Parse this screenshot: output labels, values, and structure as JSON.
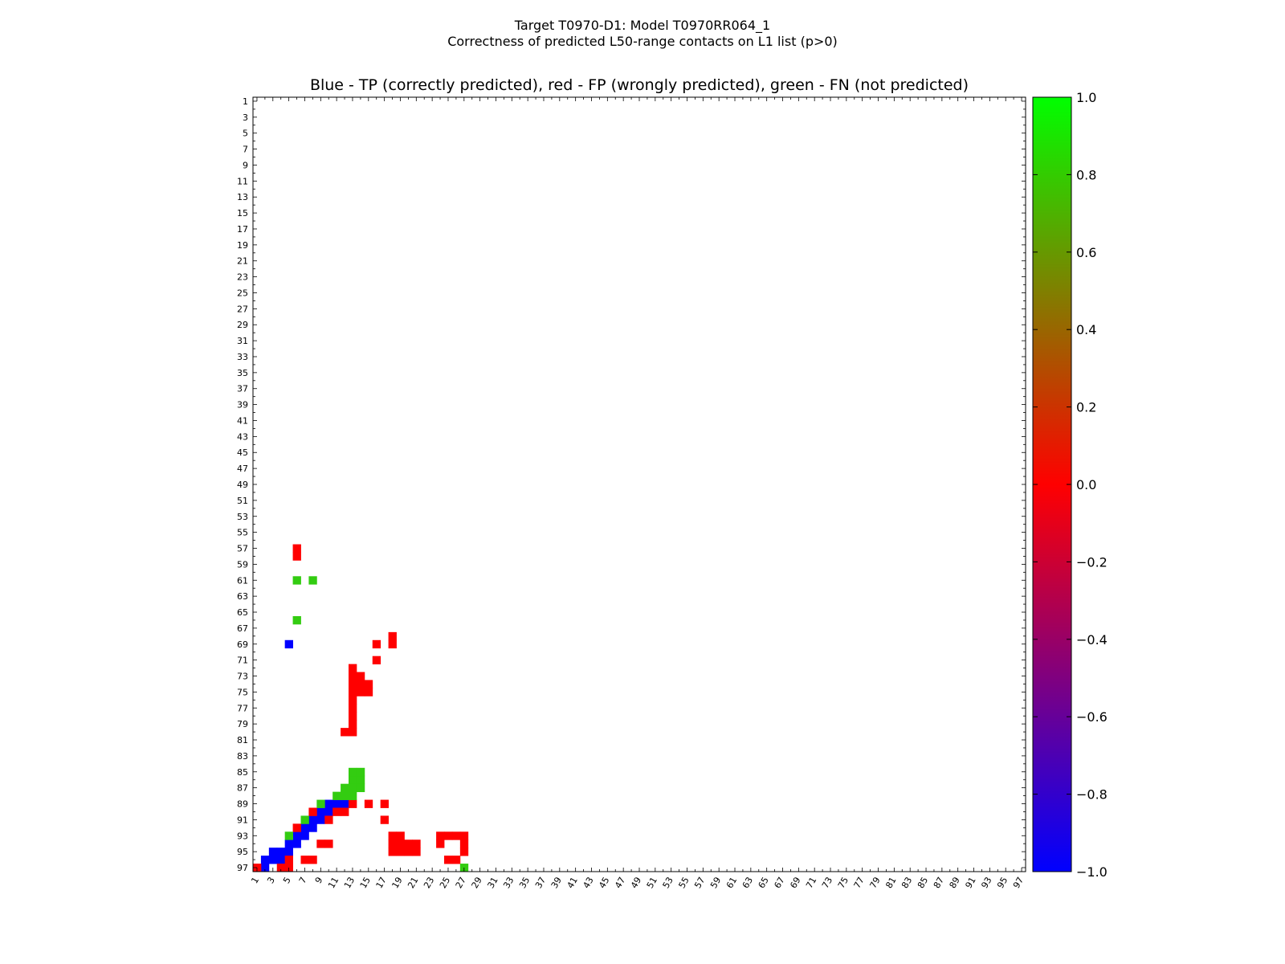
{
  "suptitle": {
    "line1": "Target T0970-D1: Model T0970RR064_1",
    "line2": "Correctness of predicted L50-range contacts on L1 list (p>0)"
  },
  "chart_data": {
    "type": "heatmap",
    "title": "Blue - TP (correctly predicted), red - FP (wrongly predicted), green - FN (not predicted)",
    "xlabel": "",
    "ylabel": "",
    "n_residues": 97,
    "x_ticks": [
      1,
      3,
      5,
      7,
      9,
      11,
      13,
      15,
      17,
      19,
      21,
      23,
      25,
      27,
      29,
      31,
      33,
      35,
      37,
      39,
      41,
      43,
      45,
      47,
      49,
      51,
      53,
      55,
      57,
      59,
      61,
      63,
      65,
      67,
      69,
      71,
      73,
      75,
      77,
      79,
      81,
      83,
      85,
      87,
      89,
      91,
      93,
      95,
      97
    ],
    "y_ticks": [
      1,
      3,
      5,
      7,
      9,
      11,
      13,
      15,
      17,
      19,
      21,
      23,
      25,
      27,
      29,
      31,
      33,
      35,
      37,
      39,
      41,
      43,
      45,
      47,
      49,
      51,
      53,
      55,
      57,
      59,
      61,
      63,
      65,
      67,
      69,
      71,
      73,
      75,
      77,
      79,
      81,
      83,
      85,
      87,
      89,
      91,
      93,
      95,
      97
    ],
    "colorbar": {
      "min": -1.0,
      "max": 1.0,
      "ticks": [
        "1.0",
        "0.8",
        "0.6",
        "0.4",
        "0.2",
        "0.0",
        "−0.2",
        "−0.4",
        "−0.6",
        "−0.8",
        "−1.0"
      ],
      "stops": [
        "#0000ff",
        "#ff0000",
        "#00ff00"
      ]
    },
    "colors": {
      "TP": "#0000ff",
      "FP": "#ff0000",
      "FN": "#33cc11"
    },
    "contacts": {
      "TP": [
        [
          96,
          2
        ],
        [
          97,
          2
        ],
        [
          95,
          3
        ],
        [
          96,
          3
        ],
        [
          96,
          4
        ],
        [
          95,
          4
        ],
        [
          94,
          5
        ],
        [
          95,
          5
        ],
        [
          93,
          6
        ],
        [
          94,
          6
        ],
        [
          92,
          7
        ],
        [
          93,
          7
        ],
        [
          91,
          8
        ],
        [
          92,
          8
        ],
        [
          90,
          9
        ],
        [
          91,
          9
        ],
        [
          89,
          10
        ],
        [
          90,
          10
        ],
        [
          89,
          11
        ],
        [
          89,
          12
        ],
        [
          69,
          5
        ]
      ],
      "FP": [
        [
          97,
          1
        ],
        [
          97,
          4
        ],
        [
          97,
          5
        ],
        [
          96,
          5
        ],
        [
          92,
          6
        ],
        [
          96,
          7
        ],
        [
          96,
          8
        ],
        [
          90,
          8
        ],
        [
          94,
          9
        ],
        [
          94,
          10
        ],
        [
          91,
          10
        ],
        [
          90,
          11
        ],
        [
          90,
          12
        ],
        [
          89,
          13
        ],
        [
          57,
          6
        ],
        [
          58,
          6
        ],
        [
          69,
          16
        ],
        [
          68,
          18
        ],
        [
          69,
          18
        ],
        [
          71,
          16
        ],
        [
          73,
          13
        ],
        [
          74,
          13
        ],
        [
          75,
          13
        ],
        [
          76,
          13
        ],
        [
          77,
          13
        ],
        [
          78,
          13
        ],
        [
          79,
          13
        ],
        [
          80,
          13
        ],
        [
          80,
          12
        ],
        [
          72,
          13
        ],
        [
          73,
          14
        ],
        [
          74,
          14
        ],
        [
          75,
          14
        ],
        [
          74,
          15
        ],
        [
          75,
          15
        ],
        [
          89,
          15
        ],
        [
          89,
          17
        ],
        [
          91,
          17
        ],
        [
          93,
          18
        ],
        [
          94,
          18
        ],
        [
          95,
          18
        ],
        [
          93,
          19
        ],
        [
          94,
          19
        ],
        [
          95,
          19
        ],
        [
          94,
          20
        ],
        [
          95,
          20
        ],
        [
          94,
          21
        ],
        [
          95,
          21
        ],
        [
          93,
          24
        ],
        [
          93,
          25
        ],
        [
          96,
          25
        ],
        [
          96,
          26
        ],
        [
          93,
          27
        ],
        [
          94,
          24
        ],
        [
          94,
          27
        ],
        [
          93,
          26
        ],
        [
          95,
          27
        ]
      ],
      "FN": [
        [
          89,
          9
        ],
        [
          91,
          7
        ],
        [
          93,
          5
        ],
        [
          86,
          13
        ],
        [
          86,
          14
        ],
        [
          85,
          13
        ],
        [
          85,
          14
        ],
        [
          87,
          12
        ],
        [
          87,
          13
        ],
        [
          88,
          13
        ],
        [
          88,
          11
        ],
        [
          88,
          12
        ],
        [
          87,
          14
        ],
        [
          61,
          6
        ],
        [
          61,
          8
        ],
        [
          66,
          6
        ],
        [
          97,
          27
        ]
      ]
    }
  }
}
